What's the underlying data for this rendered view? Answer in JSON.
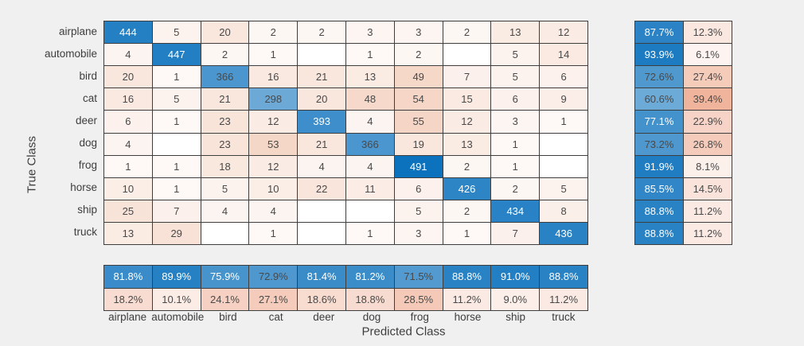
{
  "chart_data": {
    "type": "heatmap",
    "title": "",
    "xlabel": "Predicted Class",
    "ylabel": "True Class",
    "classes": [
      "airplane",
      "automobile",
      "bird",
      "cat",
      "deer",
      "dog",
      "frog",
      "horse",
      "ship",
      "truck"
    ],
    "matrix": [
      [
        444,
        5,
        20,
        2,
        2,
        3,
        3,
        2,
        13,
        12
      ],
      [
        4,
        447,
        2,
        1,
        null,
        1,
        2,
        null,
        5,
        14
      ],
      [
        20,
        1,
        366,
        16,
        21,
        13,
        49,
        7,
        5,
        6
      ],
      [
        16,
        5,
        21,
        298,
        20,
        48,
        54,
        15,
        6,
        9
      ],
      [
        6,
        1,
        23,
        12,
        393,
        4,
        55,
        12,
        3,
        1
      ],
      [
        4,
        null,
        23,
        53,
        21,
        366,
        19,
        13,
        1,
        null
      ],
      [
        1,
        1,
        18,
        12,
        4,
        4,
        491,
        2,
        1,
        null
      ],
      [
        10,
        1,
        5,
        10,
        22,
        11,
        6,
        426,
        2,
        5
      ],
      [
        25,
        7,
        4,
        4,
        null,
        null,
        5,
        2,
        434,
        8
      ],
      [
        13,
        29,
        null,
        1,
        null,
        1,
        3,
        1,
        7,
        436
      ]
    ],
    "row_summary_percent": [
      [
        87.7,
        12.3
      ],
      [
        93.9,
        6.1
      ],
      [
        72.6,
        27.4
      ],
      [
        60.6,
        39.4
      ],
      [
        77.1,
        22.9
      ],
      [
        73.2,
        26.8
      ],
      [
        91.9,
        8.1
      ],
      [
        85.5,
        14.5
      ],
      [
        88.8,
        11.2
      ],
      [
        88.8,
        11.2
      ]
    ],
    "col_summary_percent": [
      [
        81.8,
        18.2
      ],
      [
        89.9,
        10.1
      ],
      [
        75.9,
        24.1
      ],
      [
        72.9,
        27.1
      ],
      [
        81.4,
        18.6
      ],
      [
        81.2,
        18.8
      ],
      [
        71.5,
        28.5
      ],
      [
        88.8,
        11.2
      ],
      [
        91.0,
        9.0
      ],
      [
        88.8,
        11.2
      ]
    ],
    "max_diagonal": 491,
    "max_off_diagonal": 55,
    "legend_position": "none",
    "grid": "on",
    "colors": {
      "diagonal_deep_blue": "#0d72bd",
      "off_diagonal_deep_salmon": "#d94104",
      "off_diagonal_cell_max": "#f5d6c6",
      "empty_cell": "#ffffff",
      "grid_line": "#3e3e3e",
      "text_dark": "#494949",
      "text_light": "#ffffff",
      "figure_background": "#f0f0f0"
    }
  }
}
